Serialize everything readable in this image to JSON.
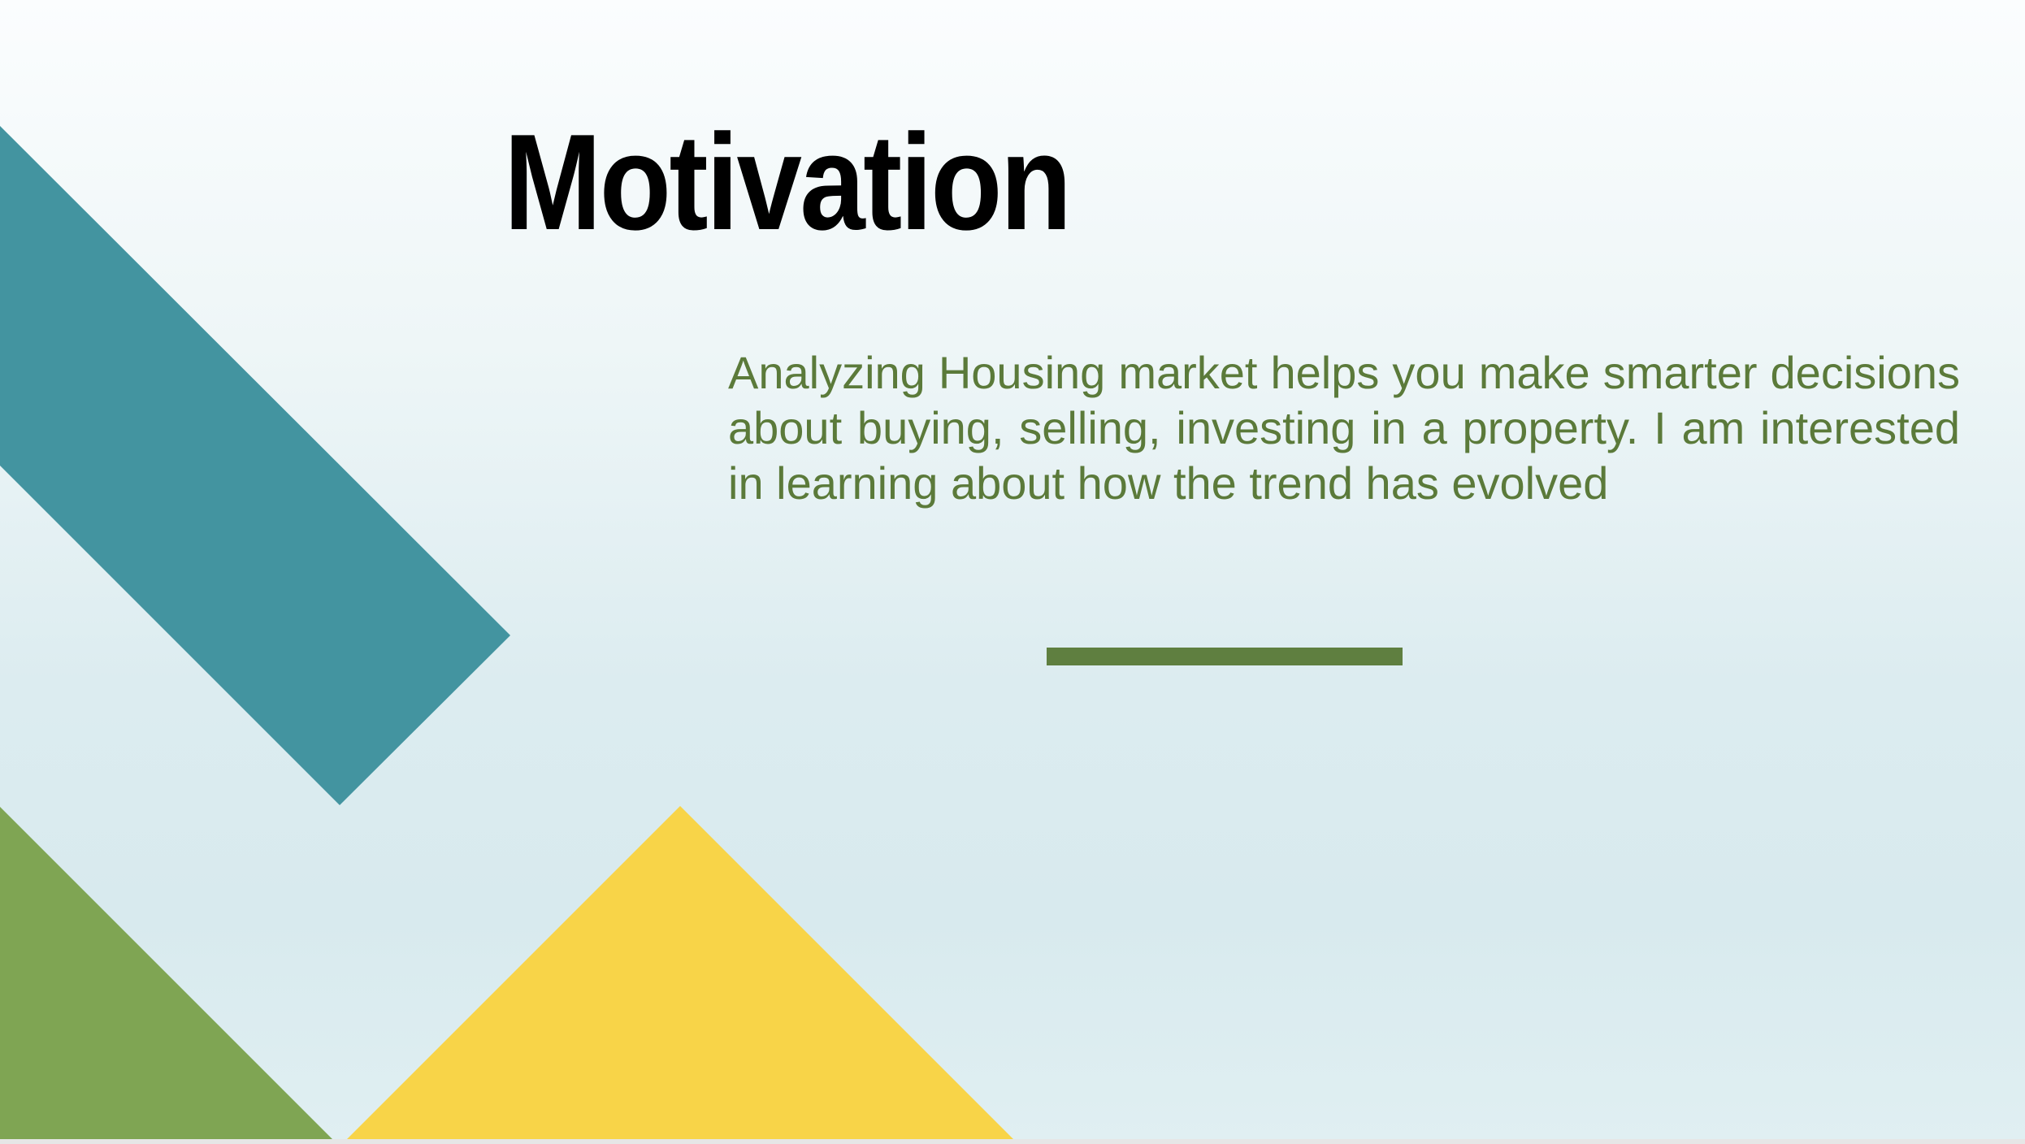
{
  "slide": {
    "title": "Motivation",
    "body": "Analyzing Housing market helps you make smarter decisions about buying, selling, investing in a property. I am interested in learning about how the trend has evolved"
  },
  "colors": {
    "title": "#000000",
    "body_text": "#5b7a3a",
    "divider": "#5f7f40",
    "teal_band": "#4394a0",
    "green_triangle": "#7fa553",
    "yellow_triangle": "#f8d448"
  }
}
